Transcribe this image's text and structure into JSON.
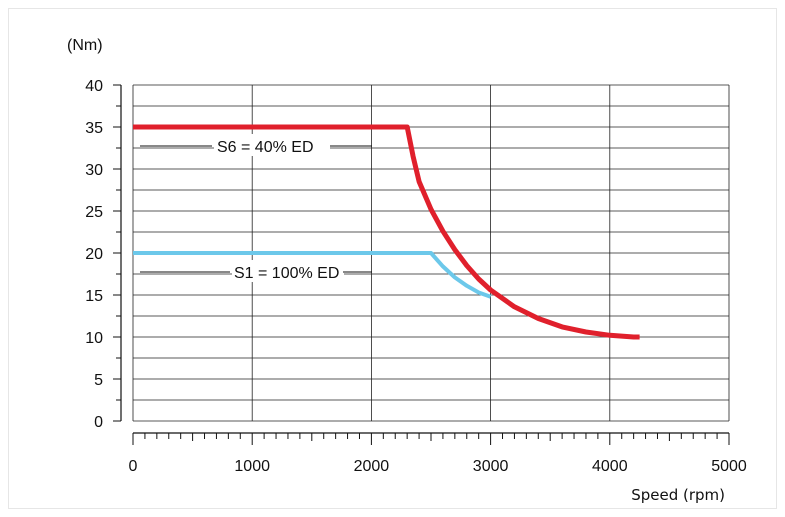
{
  "chart_data": {
    "type": "line",
    "ylabel": "(Nm)",
    "xlabel": "Speed (rpm)",
    "xlim": [
      0,
      5000
    ],
    "ylim": [
      0,
      40
    ],
    "x_ticks": [
      {
        "value": 0,
        "label": "0"
      },
      {
        "value": 1000,
        "label": "1000"
      },
      {
        "value": 2000,
        "label": "2000"
      },
      {
        "value": 3000,
        "label": "3000"
      },
      {
        "value": 4000,
        "label": "4000"
      },
      {
        "value": 5000,
        "label": "5000"
      }
    ],
    "y_ticks": [
      {
        "value": 0,
        "label": "0"
      },
      {
        "value": 5,
        "label": "5"
      },
      {
        "value": 10,
        "label": "10"
      },
      {
        "value": 15,
        "label": "15"
      },
      {
        "value": 20,
        "label": "20"
      },
      {
        "value": 25,
        "label": "25"
      },
      {
        "value": 30,
        "label": "30"
      },
      {
        "value": 35,
        "label": "35"
      },
      {
        "value": 40,
        "label": "40"
      }
    ],
    "grid": true,
    "series": [
      {
        "name": "S1 = 100% ED",
        "color": "#6cc8ea",
        "points": [
          [
            0,
            20
          ],
          [
            2500,
            20
          ],
          [
            2600,
            18.4
          ],
          [
            2700,
            17.1
          ],
          [
            2800,
            16.1
          ],
          [
            2900,
            15.3
          ],
          [
            3000,
            14.8
          ]
        ]
      },
      {
        "name": "S6 = 40% ED",
        "color": "#e0202c",
        "points": [
          [
            0,
            35
          ],
          [
            2300,
            35
          ],
          [
            2350,
            31.5
          ],
          [
            2400,
            28.5
          ],
          [
            2500,
            25.2
          ],
          [
            2600,
            22.6
          ],
          [
            2700,
            20.4
          ],
          [
            2800,
            18.5
          ],
          [
            2900,
            16.9
          ],
          [
            3000,
            15.6
          ],
          [
            3200,
            13.6
          ],
          [
            3400,
            12.2
          ],
          [
            3600,
            11.2
          ],
          [
            3800,
            10.6
          ],
          [
            4000,
            10.2
          ],
          [
            4200,
            10.0
          ],
          [
            4250,
            10.0
          ]
        ]
      }
    ],
    "annotations": [
      {
        "text": "S6 = 40% ED",
        "series": "S6 = 40% ED"
      },
      {
        "text": "S1 = 100% ED",
        "series": "S1 = 100% ED"
      }
    ]
  }
}
